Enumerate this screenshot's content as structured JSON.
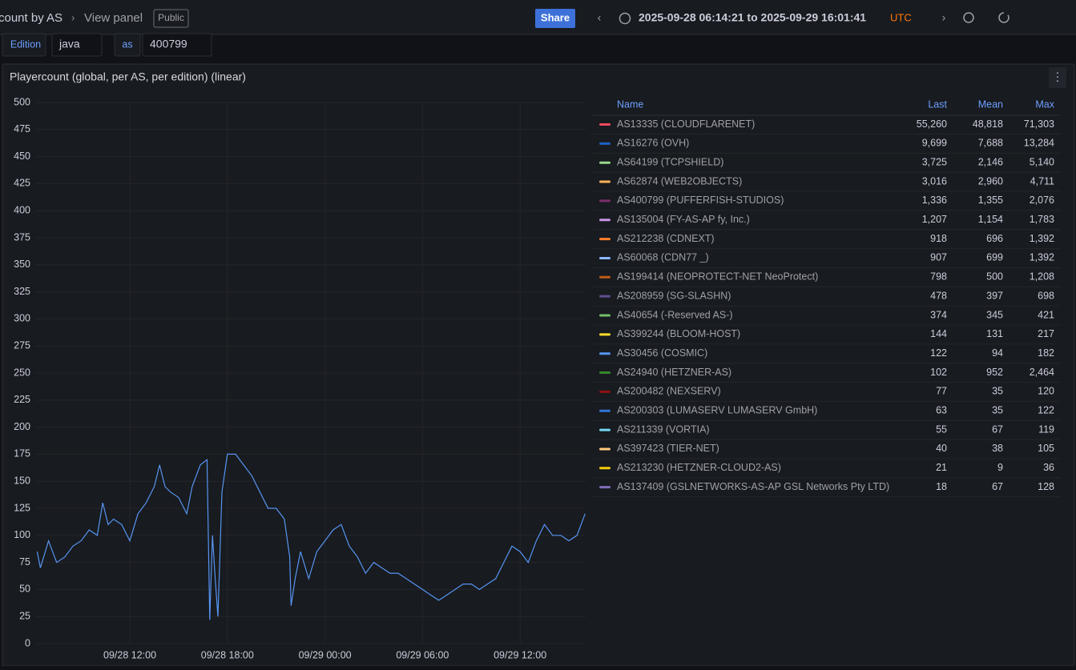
{
  "header": {
    "breadcrumb": "count by AS",
    "view": "View panel",
    "badge": "Public",
    "share": "Share",
    "time_range": "2025-09-28 06:14:21 to 2025-09-29 16:01:41",
    "timezone": "UTC"
  },
  "filters": [
    {
      "label": "Edition",
      "value": "java"
    },
    {
      "label": "as",
      "value": "400799"
    }
  ],
  "panel": {
    "title": "Playercount (global, per AS, per edition) (linear)"
  },
  "legend": {
    "columns": [
      "Name",
      "Last",
      "Mean",
      "Max"
    ],
    "rows": [
      {
        "color": "#f2495c",
        "name": "AS13335 (CLOUDFLARENET)",
        "last": "55,260",
        "mean": "48,818",
        "max": "71,303"
      },
      {
        "color": "#1f60c4",
        "name": "AS16276 (OVH)",
        "last": "9,699",
        "mean": "7,688",
        "max": "13,284"
      },
      {
        "color": "#96d98d",
        "name": "AS64199 (TCPSHIELD)",
        "last": "3,725",
        "mean": "2,146",
        "max": "5,140"
      },
      {
        "color": "#ffb357",
        "name": "AS62874 (WEB2OBJECTS)",
        "last": "3,016",
        "mean": "2,960",
        "max": "4,711"
      },
      {
        "color": "#7c2e6b",
        "name": "AS400799 (PUFFERFISH-STUDIOS)",
        "last": "1,336",
        "mean": "1,355",
        "max": "2,076"
      },
      {
        "color": "#ca95e5",
        "name": "AS135004 (FY-AS-AP fy, Inc.)",
        "last": "1,207",
        "mean": "1,154",
        "max": "1,783"
      },
      {
        "color": "#ff7f2a",
        "name": "AS212238 (CDNEXT)",
        "last": "918",
        "mean": "696",
        "max": "1,392"
      },
      {
        "color": "#8ab8ff",
        "name": "AS60068 (CDN77 _)",
        "last": "907",
        "mean": "699",
        "max": "1,392"
      },
      {
        "color": "#c15c17",
        "name": "AS199414 (NEOPROTECT-NET NeoProtect)",
        "last": "798",
        "mean": "500",
        "max": "1,208"
      },
      {
        "color": "#614d93",
        "name": "AS208959 (SG-SLASHN)",
        "last": "478",
        "mean": "397",
        "max": "698"
      },
      {
        "color": "#73bf69",
        "name": "AS40654 (-Reserved AS-)",
        "last": "374",
        "mean": "345",
        "max": "421"
      },
      {
        "color": "#fade2a",
        "name": "AS399244 (BLOOM-HOST)",
        "last": "144",
        "mean": "131",
        "max": "217"
      },
      {
        "color": "#5794f2",
        "name": "AS30456 (COSMIC)",
        "last": "122",
        "mean": "94",
        "max": "182"
      },
      {
        "color": "#37872d",
        "name": "AS24940 (HETZNER-AS)",
        "last": "102",
        "mean": "952",
        "max": "2,464"
      },
      {
        "color": "#8f1010",
        "name": "AS200482 (NEXSERV)",
        "last": "77",
        "mean": "35",
        "max": "120"
      },
      {
        "color": "#3274d9",
        "name": "AS200303 (LUMASERV LUMASERV GmbH)",
        "last": "63",
        "mean": "35",
        "max": "122"
      },
      {
        "color": "#73d7f5",
        "name": "AS211339 (VORTIA)",
        "last": "55",
        "mean": "67",
        "max": "119"
      },
      {
        "color": "#ffcb7d",
        "name": "AS397423 (TIER-NET)",
        "last": "40",
        "mean": "38",
        "max": "105"
      },
      {
        "color": "#f2cc0c",
        "name": "AS213230 (HETZNER-CLOUD2-AS)",
        "last": "21",
        "mean": "9",
        "max": "36"
      },
      {
        "color": "#806eb7",
        "name": "AS137409 (GSLNETWORKS-AS-AP GSL Networks Pty LTD)",
        "last": "18",
        "mean": "67",
        "max": "128"
      }
    ]
  },
  "chart_data": {
    "type": "line",
    "color": "#5794f2",
    "x": [
      "09/28 06:18",
      "09/28 06:30",
      "09/28 07:00",
      "09/28 07:30",
      "09/28 08:00",
      "09/28 08:30",
      "09/28 09:00",
      "09/28 09:30",
      "09/28 10:00",
      "09/28 10:20",
      "09/28 10:40",
      "09/28 11:00",
      "09/28 11:30",
      "09/28 12:00",
      "09/28 12:30",
      "09/28 13:00",
      "09/28 13:30",
      "09/28 13:50",
      "09/28 14:10",
      "09/28 14:30",
      "09/28 15:00",
      "09/28 15:30",
      "09/28 15:50",
      "09/28 16:20",
      "09/28 16:45",
      "09/28 16:55",
      "09/28 17:05",
      "09/28 17:15",
      "09/28 17:25",
      "09/28 17:40",
      "09/28 18:00",
      "09/28 18:30",
      "09/28 19:00",
      "09/28 19:30",
      "09/28 20:00",
      "09/28 20:30",
      "09/28 21:00",
      "09/28 21:30",
      "09/28 21:50",
      "09/28 21:55",
      "09/28 22:10",
      "09/28 22:30",
      "09/28 23:00",
      "09/28 23:30",
      "09/29 00:00",
      "09/29 00:30",
      "09/29 01:00",
      "09/29 01:30",
      "09/29 02:00",
      "09/29 02:30",
      "09/29 03:00",
      "09/29 03:30",
      "09/29 04:00",
      "09/29 04:30",
      "09/29 05:00",
      "09/29 05:30",
      "09/29 06:00",
      "09/29 06:30",
      "09/29 07:00",
      "09/29 07:30",
      "09/29 08:00",
      "09/29 08:30",
      "09/29 09:00",
      "09/29 09:30",
      "09/29 10:00",
      "09/29 10:30",
      "09/29 11:00",
      "09/29 11:30",
      "09/29 12:00",
      "09/29 12:30",
      "09/29 13:00",
      "09/29 13:30",
      "09/29 14:00",
      "09/29 14:30",
      "09/29 15:00",
      "09/29 15:30",
      "09/29 16:00"
    ],
    "values": [
      85,
      70,
      95,
      75,
      80,
      90,
      95,
      105,
      100,
      130,
      110,
      115,
      110,
      95,
      120,
      130,
      145,
      165,
      145,
      140,
      135,
      120,
      145,
      165,
      170,
      22,
      100,
      60,
      25,
      140,
      175,
      175,
      165,
      155,
      140,
      125,
      125,
      115,
      80,
      35,
      60,
      85,
      60,
      85,
      95,
      105,
      110,
      90,
      80,
      65,
      75,
      70,
      65,
      65,
      60,
      55,
      50,
      45,
      40,
      45,
      50,
      55,
      55,
      50,
      55,
      60,
      75,
      90,
      85,
      75,
      95,
      110,
      100,
      100,
      95,
      100,
      120
    ],
    "xlim": [
      "09/28 06:14",
      "09/29 16:02"
    ],
    "xticks": [
      "09/28 12:00",
      "09/28 18:00",
      "09/29 00:00",
      "09/29 06:00",
      "09/29 12:00"
    ],
    "ylim": [
      0,
      500
    ],
    "yticks": [
      0,
      25,
      50,
      75,
      100,
      125,
      150,
      175,
      200,
      225,
      250,
      275,
      300,
      325,
      350,
      375,
      400,
      425,
      450,
      475,
      500
    ],
    "grid": true
  }
}
